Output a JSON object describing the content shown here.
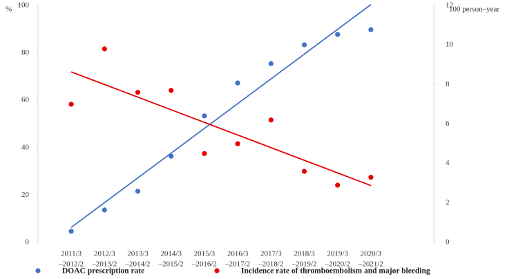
{
  "chart_data": {
    "type": "scatter",
    "y_label": "%",
    "y2_label": "100 person–year",
    "categories": [
      [
        "2011/3",
        "–2012/2"
      ],
      [
        "2012/3",
        "–2013/2"
      ],
      [
        "2013/3",
        "–2014/2"
      ],
      [
        "2014/3",
        "–2015/2"
      ],
      [
        "2015/3",
        "–2016/2"
      ],
      [
        "2016/3",
        "–2017/2"
      ],
      [
        "2017/3",
        "–2018/2"
      ],
      [
        "2018/3",
        "–2019/2"
      ],
      [
        "2019/3",
        "–2020/2"
      ],
      [
        "2020/3",
        "–2021/2"
      ]
    ],
    "series": [
      {
        "name": "DOAC prescription rate",
        "color": "#4472c4",
        "values": [
          4.7,
          13.7,
          21.6,
          36.4,
          53.4,
          67.3,
          75.5,
          83.4,
          87.8,
          89.8
        ]
      },
      {
        "name": "Incidence rate of thromboembolism and major bleeding",
        "color": "#e60000",
        "axis": "y2",
        "values": [
          7.0,
          9.8,
          7.6,
          7.7,
          4.5,
          5.0,
          6.2,
          3.6,
          2.9,
          3.3
        ]
      }
    ],
    "trendline": true,
    "ylim": [
      0,
      100
    ],
    "yticks": [
      0,
      20,
      40,
      60,
      80,
      100
    ],
    "y2lim": [
      0,
      12
    ],
    "y2ticks": [
      0,
      2,
      4,
      6,
      8,
      10,
      12
    ]
  }
}
